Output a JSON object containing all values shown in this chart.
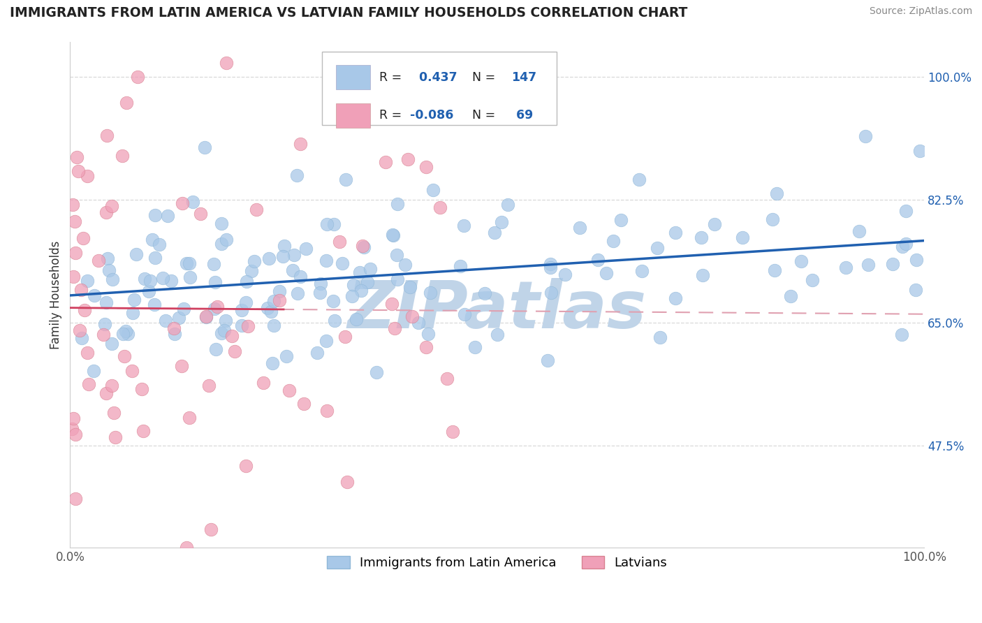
{
  "title": "IMMIGRANTS FROM LATIN AMERICA VS LATVIAN FAMILY HOUSEHOLDS CORRELATION CHART",
  "source": "Source: ZipAtlas.com",
  "ylabel": "Family Households",
  "r_blue": 0.437,
  "n_blue": 147,
  "r_pink": -0.086,
  "n_pink": 69,
  "blue_color": "#a8c8e8",
  "blue_edge_color": "#90b8d8",
  "blue_line_color": "#2060b0",
  "pink_color": "#f0a0b8",
  "pink_edge_color": "#d88090",
  "pink_line_color": "#d04060",
  "pink_dash_color": "#e0a0b0",
  "legend_label_blue": "Immigrants from Latin America",
  "legend_label_pink": "Latvians",
  "xlim": [
    0,
    1
  ],
  "ylim": [
    0.33,
    1.05
  ],
  "yticks": [
    0.475,
    0.65,
    0.825,
    1.0
  ],
  "ytick_labels": [
    "47.5%",
    "65.0%",
    "82.5%",
    "100.0%"
  ],
  "grid_color": "#d8d8d8",
  "watermark": "ZIPatlas",
  "watermark_color": "#c0d4e8",
  "background_color": "#ffffff",
  "title_color": "#222222",
  "source_color": "#888888",
  "label_color": "#333333",
  "tick_color": "#2060b0"
}
